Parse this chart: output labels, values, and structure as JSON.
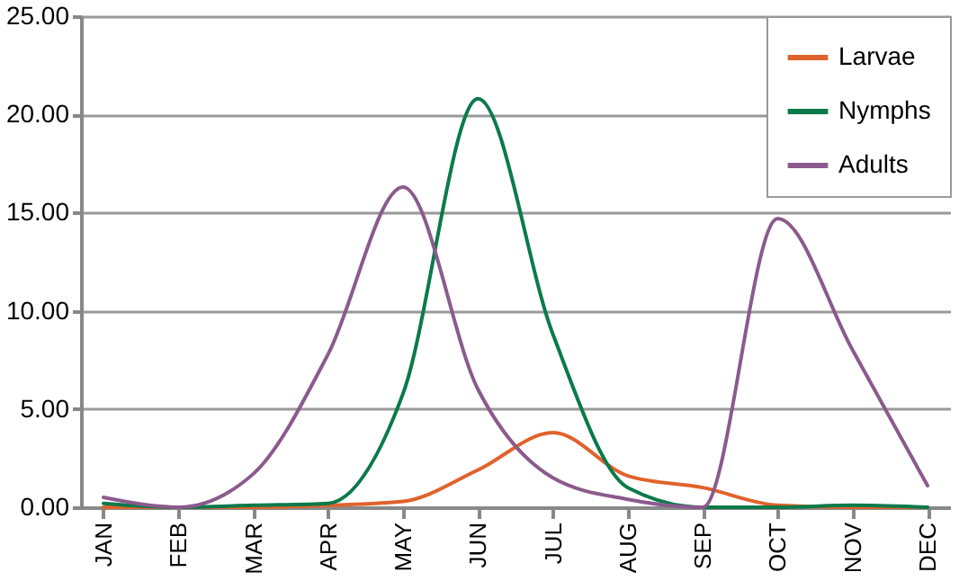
{
  "chart_data": {
    "type": "line",
    "categories": [
      "JAN",
      "FEB",
      "MAR",
      "APR",
      "MAY",
      "JUN",
      "JUL",
      "AUG",
      "SEP",
      "OCT",
      "NOV",
      "DEC"
    ],
    "series": [
      {
        "name": "Larvae",
        "color": "#e0622b",
        "values": [
          0,
          0,
          0,
          0.1,
          0.3,
          1.9,
          3.8,
          1.6,
          1.0,
          0.1,
          0,
          0
        ]
      },
      {
        "name": "Nymphs",
        "color": "#0b7a4a",
        "values": [
          0.2,
          0,
          0.1,
          0.2,
          5.8,
          20.8,
          8.8,
          1.0,
          0,
          0,
          0.1,
          0
        ]
      },
      {
        "name": "Adults",
        "color": "#8b5a8c",
        "values": [
          0.5,
          0,
          1.7,
          7.8,
          16.3,
          6.0,
          1.5,
          0.4,
          0,
          14.7,
          8.0,
          1.1
        ]
      }
    ],
    "ylim": [
      0,
      25
    ],
    "yticks": [
      {
        "value": 0,
        "label": "0.00"
      },
      {
        "value": 5,
        "label": "5.00"
      },
      {
        "value": 10,
        "label": "10.00"
      },
      {
        "value": 15,
        "label": "15.00"
      },
      {
        "value": 20,
        "label": "20.00"
      },
      {
        "value": 25,
        "label": "25.00"
      }
    ],
    "grid": "y",
    "legend": "top right",
    "marker": "none",
    "line_style": "solid"
  }
}
